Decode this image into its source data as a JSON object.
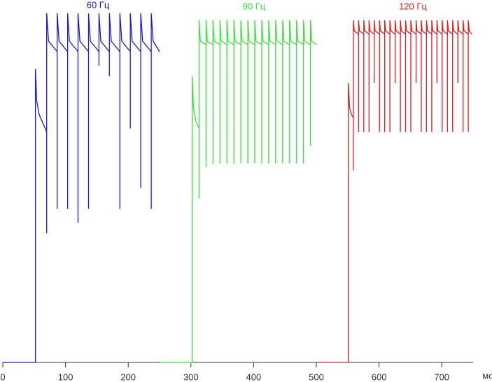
{
  "chart_data": {
    "type": "line",
    "x_label": "мс",
    "xlim": [
      0,
      750
    ],
    "xticks": [
      0,
      100,
      200,
      300,
      400,
      500,
      600,
      700
    ],
    "ylim": [
      0,
      100
    ],
    "series": [
      {
        "name": "60 Гц",
        "color": "#1a1acc",
        "x": [
          0,
          52,
          52,
          54,
          58,
          70,
          70,
          70,
          73,
          86.7,
          86.7,
          86.7,
          89.7,
          103.3,
          103.3,
          103.3,
          106.3,
          120,
          120,
          120,
          123,
          136.7,
          136.7,
          136.7,
          139.7,
          153.3,
          153.3,
          153.3,
          156.3,
          170,
          170,
          170,
          173,
          186.7,
          186.7,
          186.7,
          189.7,
          203.3,
          203.3,
          203.3,
          206.3,
          220,
          220,
          220,
          223,
          236.7,
          236.7,
          236.7,
          239.7,
          250
        ],
        "values": [
          0,
          0,
          84,
          75,
          71,
          66,
          37,
          100,
          92,
          89,
          44,
          100,
          92,
          89,
          44,
          100,
          92,
          89,
          40,
          100,
          92,
          89,
          44,
          100,
          92,
          89,
          85,
          100,
          92,
          89,
          82,
          100,
          92,
          89,
          44,
          100,
          92,
          89,
          67,
          100,
          92,
          89,
          50,
          100,
          92,
          89,
          44,
          100,
          92,
          89
        ]
      },
      {
        "name": "90 Гц",
        "color": "#33e633",
        "x": [
          252,
          302,
          302,
          304,
          308,
          313,
          313,
          313,
          315,
          324.1,
          324.1,
          324.1,
          326.1,
          335.2,
          335.2,
          335.2,
          337.2,
          346.3,
          346.3,
          346.3,
          348.3,
          357.4,
          357.4,
          357.4,
          359.4,
          368.5,
          368.5,
          368.5,
          370.5,
          379.6,
          379.6,
          379.6,
          381.6,
          390.7,
          390.7,
          390.7,
          392.7,
          401.8,
          401.8,
          401.8,
          403.8,
          412.9,
          412.9,
          412.9,
          414.9,
          424,
          424,
          424,
          426,
          435.1,
          435.1,
          435.1,
          437.1,
          446.2,
          446.2,
          446.2,
          448.2,
          457.3,
          457.3,
          457.3,
          459.3,
          468.4,
          468.4,
          468.4,
          470.4,
          479.5,
          479.5,
          479.5,
          481.5,
          490.6,
          490.6,
          490.6,
          492.6,
          500
        ],
        "values": [
          0,
          0,
          82,
          73,
          69,
          67,
          47,
          98,
          92,
          91,
          56,
          98,
          92,
          91,
          57,
          98,
          92,
          91,
          57,
          98,
          92,
          91,
          57,
          98,
          92,
          91,
          57,
          98,
          92,
          91,
          57,
          98,
          92,
          91,
          57,
          98,
          92,
          91,
          57,
          98,
          92,
          91,
          57,
          98,
          92,
          91,
          57,
          98,
          92,
          91,
          57,
          98,
          92,
          91,
          57,
          98,
          92,
          91,
          57,
          98,
          92,
          91,
          57,
          98,
          92,
          91,
          57,
          98,
          92,
          91,
          62,
          98,
          92,
          91
        ]
      },
      {
        "name": "120 Гц",
        "color": "#e61a1a",
        "x": [
          500,
          551,
          551,
          553,
          556,
          559,
          559,
          559,
          560.5,
          567.3,
          567.3,
          567.3,
          568.8,
          575.7,
          575.7,
          575.7,
          577.2,
          584,
          584,
          584,
          585.5,
          592.3,
          592.3,
          592.3,
          593.8,
          600.7,
          600.7,
          600.7,
          602.2,
          609,
          609,
          609,
          610.5,
          617.3,
          617.3,
          617.3,
          618.8,
          625.7,
          625.7,
          625.7,
          627.2,
          634,
          634,
          634,
          635.5,
          642.3,
          642.3,
          642.3,
          643.8,
          650.7,
          650.7,
          650.7,
          652.2,
          659,
          659,
          659,
          660.5,
          667.3,
          667.3,
          667.3,
          668.8,
          675.7,
          675.7,
          675.7,
          677.2,
          684,
          684,
          684,
          685.5,
          692.3,
          692.3,
          692.3,
          693.8,
          700.7,
          700.7,
          700.7,
          702.2,
          709,
          709,
          709,
          710.5,
          717.3,
          717.3,
          717.3,
          718.8,
          725.7,
          725.7,
          725.7,
          727.2,
          734,
          734,
          734,
          735.5,
          742.3,
          742.3,
          742.3,
          743.8,
          748
        ],
        "values": [
          0,
          0,
          80,
          73,
          71,
          70,
          55,
          98,
          95,
          94,
          66,
          98,
          95,
          94,
          66,
          98,
          95,
          94,
          66,
          98,
          95,
          94,
          80,
          98,
          95,
          94,
          66,
          98,
          95,
          94,
          66,
          98,
          95,
          94,
          66,
          98,
          95,
          94,
          80,
          98,
          95,
          94,
          66,
          98,
          95,
          94,
          66,
          98,
          95,
          94,
          66,
          98,
          95,
          94,
          80,
          98,
          95,
          94,
          66,
          98,
          95,
          94,
          66,
          98,
          95,
          94,
          66,
          98,
          95,
          94,
          80,
          98,
          95,
          94,
          66,
          98,
          95,
          94,
          66,
          98,
          95,
          94,
          66,
          98,
          95,
          94,
          80,
          98,
          95,
          94,
          66,
          98,
          95,
          94,
          66,
          98,
          95,
          94
        ]
      }
    ]
  }
}
